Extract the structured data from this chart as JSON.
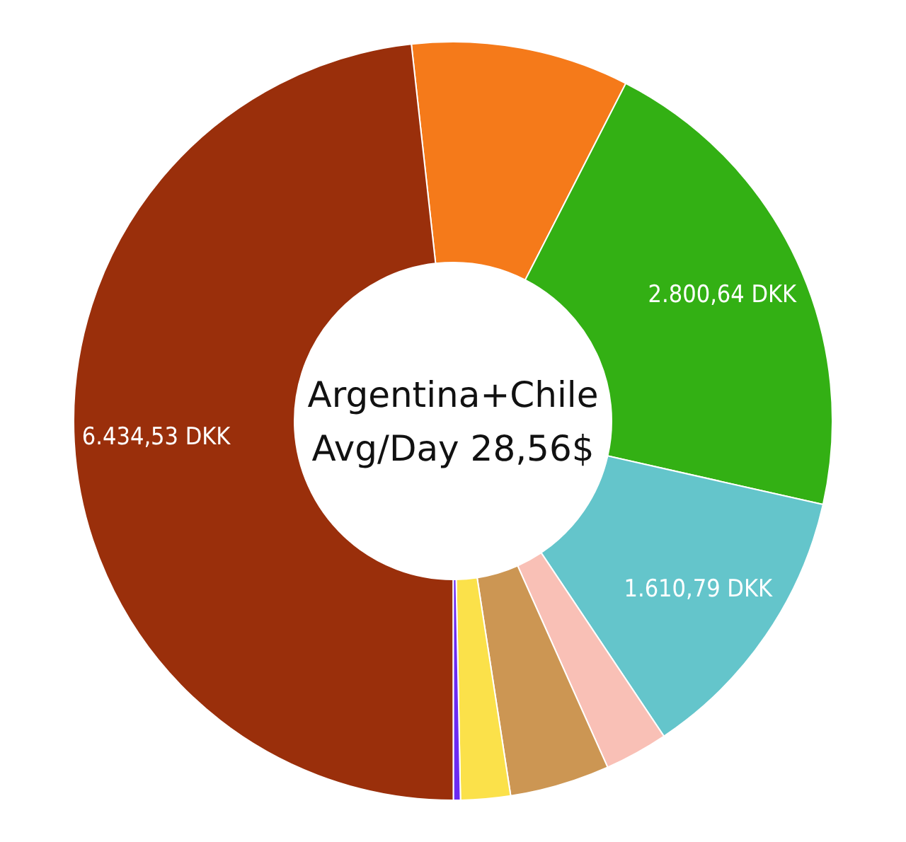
{
  "chart_data": {
    "type": "donut",
    "title": "Argentina+Chile",
    "subtitle": "Avg/Day 28,56$",
    "categories": [
      null,
      null,
      null,
      null,
      null,
      null,
      null,
      null
    ],
    "values": [
      1237,
      2800.64,
      1610.79,
      360,
      567,
      282,
      40,
      6434.53
    ],
    "value_labels": [
      null,
      "2.800,64 DKK",
      "1.610,79 DKK",
      null,
      null,
      null,
      null,
      "6.434,53 DKK"
    ],
    "colors": [
      "#f57a1a",
      "#33b014",
      "#64c5cb",
      "#f9c0b6",
      "#cc9653",
      "#fbe14a",
      "#6b2bf2",
      "#9a2f0b"
    ]
  }
}
